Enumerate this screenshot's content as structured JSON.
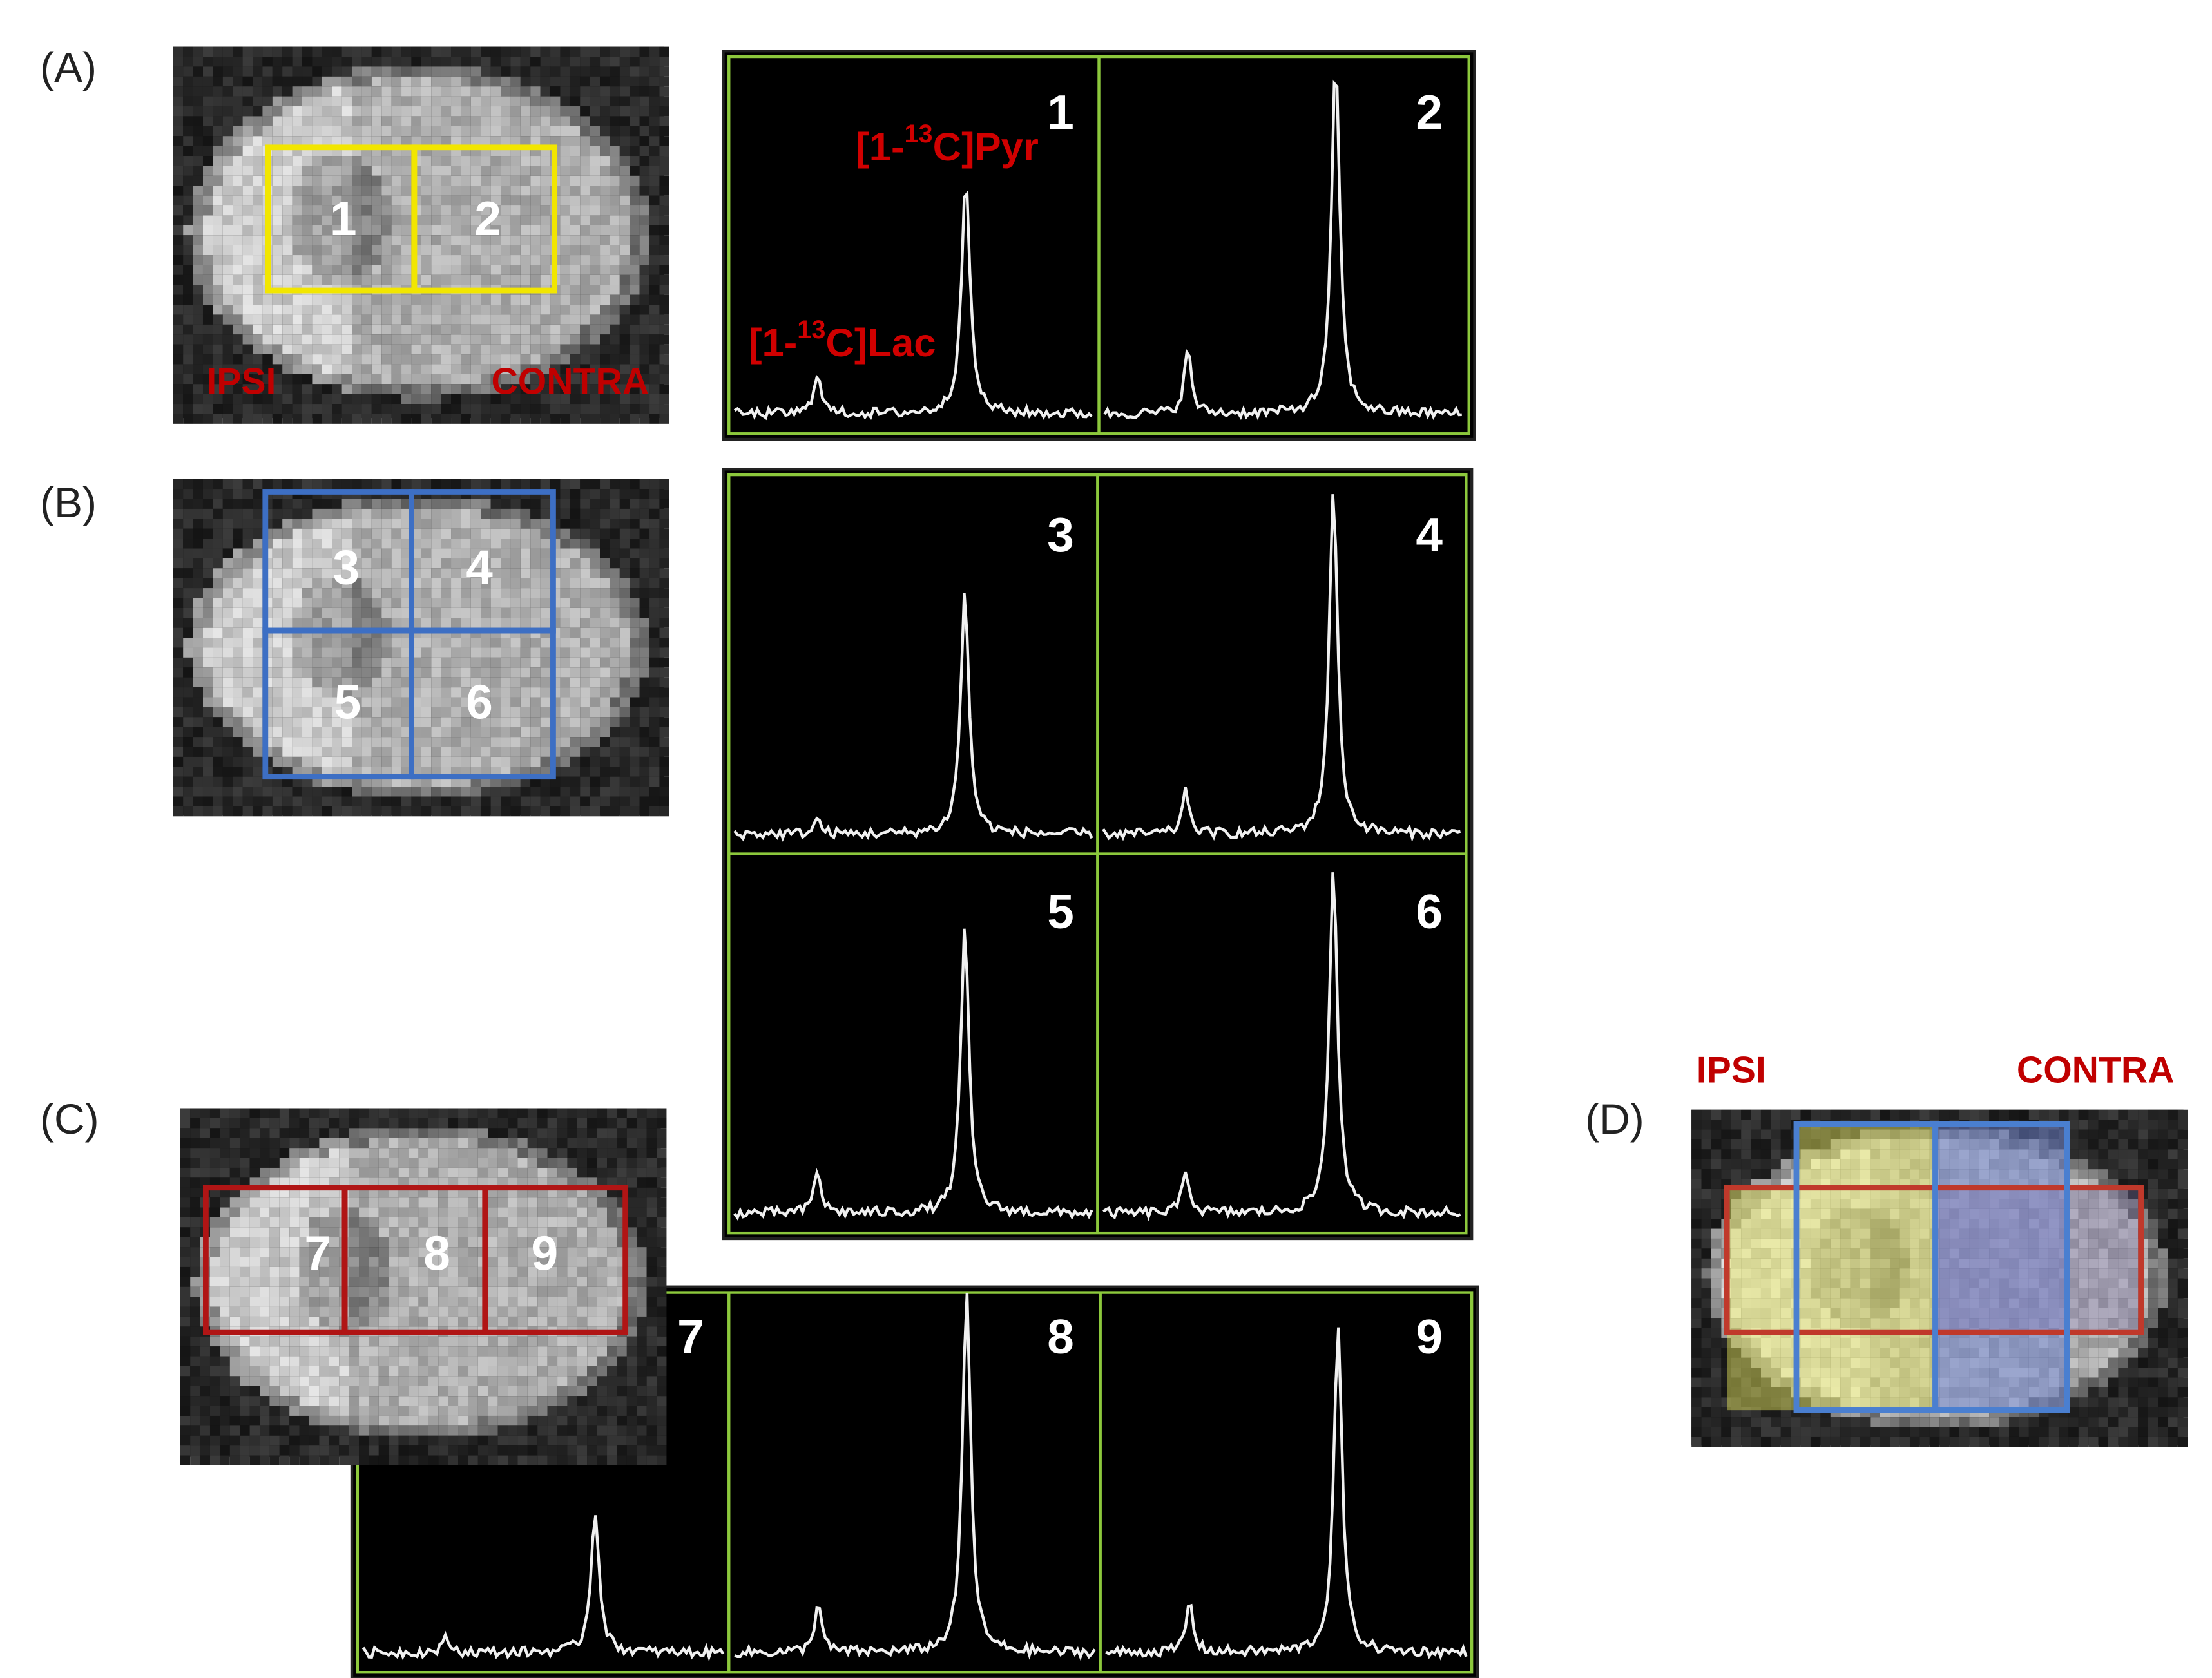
{
  "panels": [
    {
      "label": "(A)",
      "regions": [
        "1",
        "2"
      ],
      "side_labels": {
        "ipsi": "IPSI",
        "contra": "CONTRA"
      },
      "spectra_labels": [
        "1",
        "2"
      ],
      "peak_labels": {
        "pyruvate": {
          "prefix": "[1-",
          "sup": "13",
          "suffix": "C]Pyr"
        },
        "lactate": {
          "prefix": "[1-",
          "sup": "13",
          "suffix": "C]Lac"
        }
      }
    },
    {
      "label": "(B)",
      "regions": [
        "3",
        "4",
        "5",
        "6"
      ],
      "spectra_labels": [
        "3",
        "4",
        "5",
        "6"
      ]
    },
    {
      "label": "(C)",
      "regions": [
        "7",
        "8",
        "9"
      ],
      "spectra_labels": [
        "7",
        "8",
        "9"
      ]
    },
    {
      "label": "(D)",
      "side_labels": {
        "ipsi": "IPSI",
        "contra": "CONTRA"
      }
    }
  ]
}
